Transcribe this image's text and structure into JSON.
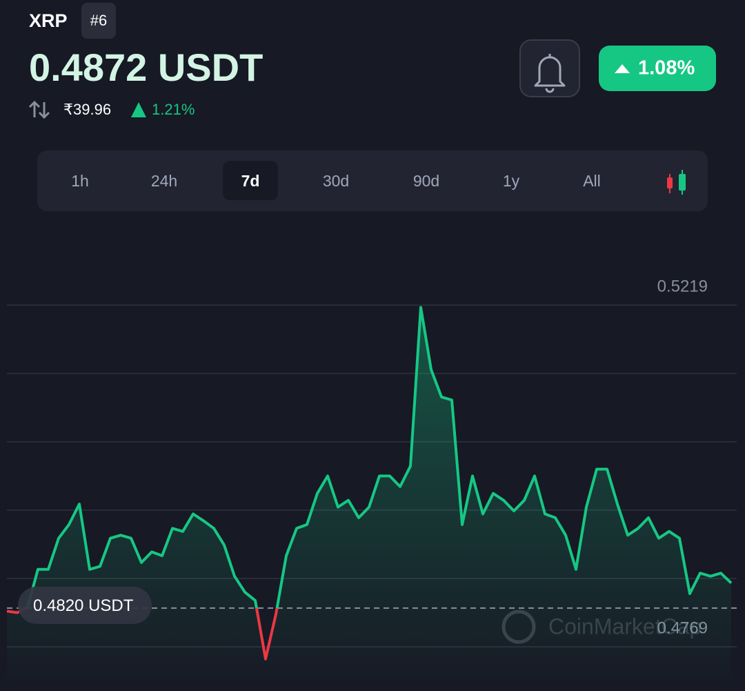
{
  "header": {
    "symbol": "XRP",
    "rank": "#6",
    "price": "0.4872 USDT",
    "inr_price": "₹39.96",
    "inr_change": "1.21%",
    "change_badge": "1.08%"
  },
  "timeframes": [
    "1h",
    "24h",
    "7d",
    "30d",
    "90d",
    "1y",
    "All"
  ],
  "active_timeframe": "7d",
  "chart_data": {
    "type": "line",
    "values": [
      0.4816,
      0.4814,
      0.4821,
      0.4871,
      0.4871,
      0.4912,
      0.493,
      0.4957,
      0.4871,
      0.4875,
      0.4912,
      0.4916,
      0.4912,
      0.488,
      0.4894,
      0.4889,
      0.4925,
      0.4921,
      0.4944,
      0.4935,
      0.4925,
      0.4903,
      0.4862,
      0.4841,
      0.483,
      0.4753,
      0.4812,
      0.4889,
      0.4925,
      0.493,
      0.4971,
      0.4994,
      0.4953,
      0.4962,
      0.4939,
      0.4953,
      0.4994,
      0.4994,
      0.498,
      0.5007,
      0.5216,
      0.5134,
      0.5098,
      0.5094,
      0.493,
      0.4994,
      0.4944,
      0.4971,
      0.4962,
      0.4948,
      0.4962,
      0.4994,
      0.4944,
      0.4939,
      0.4916,
      0.4871,
      0.4953,
      0.5003,
      0.5003,
      0.4957,
      0.4916,
      0.4925,
      0.4939,
      0.4912,
      0.4921,
      0.4912,
      0.4839,
      0.4866,
      0.4862,
      0.4866,
      0.4853
    ],
    "color": "#16c784",
    "down_color": "#ea3943",
    "ylim": [
      0.4769,
      0.5219
    ],
    "yticks": [
      0.5219,
      0.4769
    ],
    "grid_lines": [
      0.5129,
      0.5039,
      0.4949,
      0.4859
    ],
    "grid": true,
    "reference": {
      "value": 0.482,
      "label": "0.4820 USDT"
    },
    "watermark": "CoinMarketCap"
  }
}
